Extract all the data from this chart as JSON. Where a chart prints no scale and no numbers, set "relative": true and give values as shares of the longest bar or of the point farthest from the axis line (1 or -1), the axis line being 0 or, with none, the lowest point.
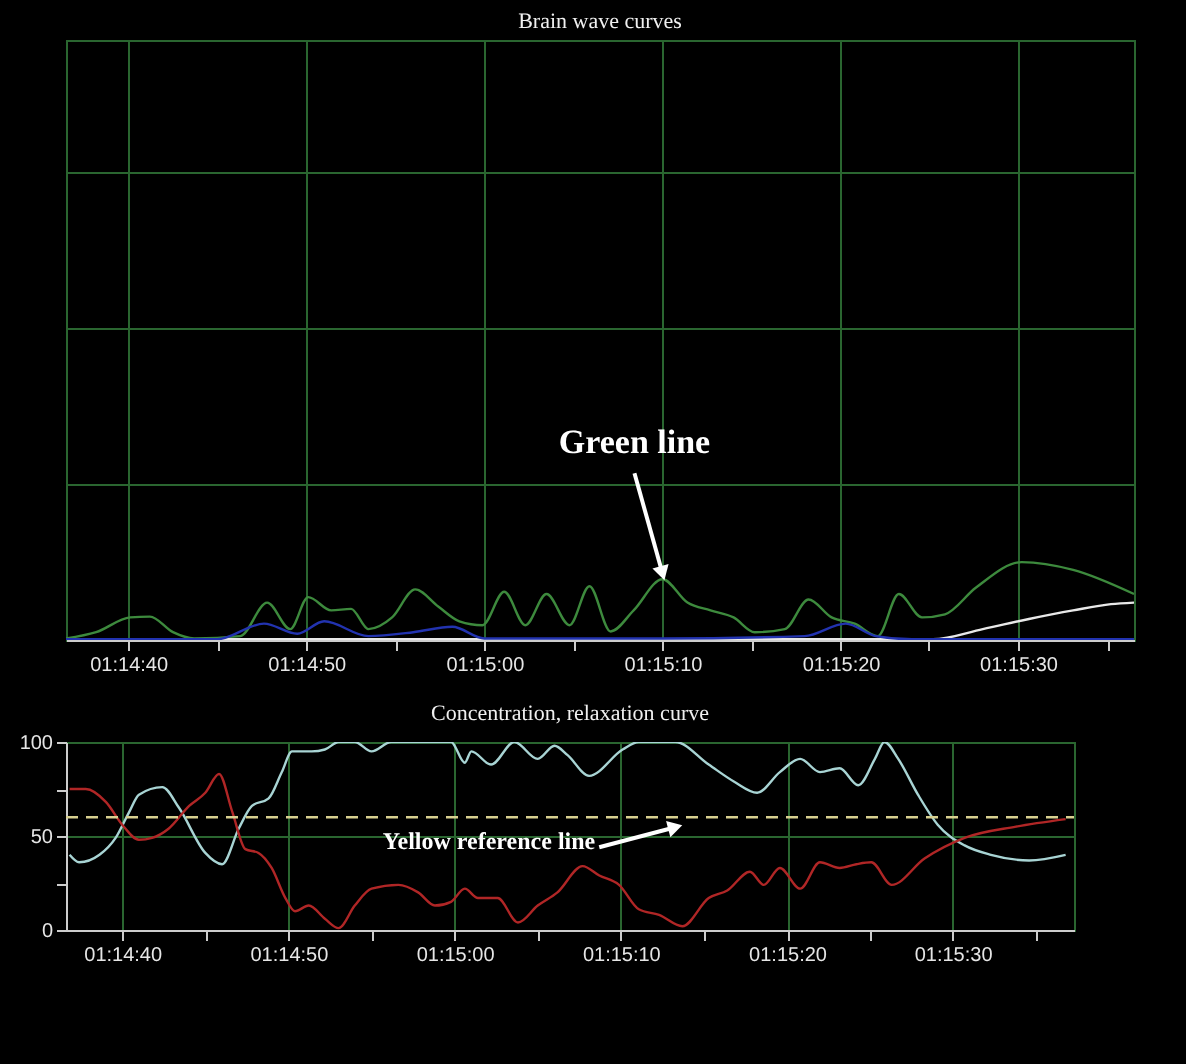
{
  "chart_data": [
    {
      "type": "line",
      "title": "Brain wave curves",
      "relative": true,
      "grid": true,
      "tick_labels": "x",
      "marker": "none",
      "line_style": "solid",
      "xlim": [
        1.24347,
        1.26014
      ],
      "xticks": [
        {
          "value": 1.24444,
          "label": "01:14:40"
        },
        {
          "value": 1.24583,
          "label": null
        },
        {
          "value": 1.24722,
          "label": "01:14:50"
        },
        {
          "value": 1.24861,
          "label": null
        },
        {
          "value": 1.25,
          "label": "01:15:00"
        },
        {
          "value": 1.25139,
          "label": null
        },
        {
          "value": 1.25278,
          "label": "01:15:10"
        },
        {
          "value": 1.25417,
          "label": null
        },
        {
          "value": 1.25556,
          "label": "01:15:20"
        },
        {
          "value": 1.25694,
          "label": null
        },
        {
          "value": 1.25833,
          "label": "01:15:30"
        },
        {
          "value": 1.25972,
          "label": null
        }
      ],
      "series": [
        {
          "color": "#3d8a3d",
          "x": [
            1.24347,
            1.24394,
            1.24447,
            1.24478,
            1.24514,
            1.24547,
            1.24619,
            1.24661,
            1.24697,
            1.24725,
            1.24761,
            1.24792,
            1.24819,
            1.24856,
            1.24892,
            1.24928,
            1.24961,
            1.24997,
            1.25031,
            1.25064,
            1.25097,
            1.25133,
            1.25164,
            1.25197,
            1.25233,
            1.25278,
            1.25317,
            1.25353,
            1.25389,
            1.25422,
            1.25469,
            1.25506,
            1.25542,
            1.25578,
            1.25614,
            1.25647,
            1.25683,
            1.25719,
            1.25767,
            1.25839,
            1.25919,
            1.26014
          ],
          "values": [
            0.02,
            0.1,
            0.29,
            0.3,
            0.1,
            0.02,
            0.05,
            0.48,
            0.14,
            0.55,
            0.38,
            0.4,
            0.14,
            0.29,
            0.65,
            0.43,
            0.24,
            0.19,
            0.62,
            0.19,
            0.59,
            0.19,
            0.69,
            0.11,
            0.38,
            0.78,
            0.48,
            0.38,
            0.29,
            0.1,
            0.14,
            0.52,
            0.29,
            0.21,
            0.05,
            0.59,
            0.29,
            0.33,
            0.67,
            1,
            0.9,
            0.59
          ]
        },
        {
          "color": "#e8e8e8",
          "x": [
            1.24347,
            1.257,
            1.25778,
            1.2585,
            1.25919,
            1.25978,
            1.26014
          ],
          "values": [
            0.01,
            0.01,
            0.14,
            0.27,
            0.38,
            0.46,
            0.48
          ]
        },
        {
          "color": "#2233b0",
          "x": [
            1.24347,
            1.24583,
            1.24656,
            1.24708,
            1.2475,
            1.24819,
            1.24889,
            1.2495,
            1.25,
            1.25278,
            1.255,
            1.25564,
            1.25611,
            1.25667,
            1.26014
          ],
          "values": [
            0.01,
            0.01,
            0.21,
            0.08,
            0.24,
            0.05,
            0.1,
            0.17,
            0.02,
            0.02,
            0.05,
            0.21,
            0.05,
            0.01,
            0.01
          ]
        }
      ],
      "annotations": [
        {
          "text": "Green line",
          "x": 1.25278,
          "y": 0.78
        }
      ]
    },
    {
      "type": "line",
      "title": "Concentration, relaxation curve",
      "grid": true,
      "marker": "none",
      "line_style": "solid",
      "xlim": [
        1.2435,
        1.26036
      ],
      "xticks": [
        {
          "value": 1.24444,
          "label": "01:14:40"
        },
        {
          "value": 1.24583,
          "label": null
        },
        {
          "value": 1.24722,
          "label": "01:14:50"
        },
        {
          "value": 1.24861,
          "label": null
        },
        {
          "value": 1.25,
          "label": "01:15:00"
        },
        {
          "value": 1.25139,
          "label": null
        },
        {
          "value": 1.25278,
          "label": "01:15:10"
        },
        {
          "value": 1.25417,
          "label": null
        },
        {
          "value": 1.25556,
          "label": "01:15:20"
        },
        {
          "value": 1.25694,
          "label": null
        },
        {
          "value": 1.25833,
          "label": "01:15:30"
        },
        {
          "value": 1.25972,
          "label": null
        }
      ],
      "ylim": [
        0,
        100
      ],
      "yticks": [
        0,
        {
          "value": 25,
          "label": null
        },
        50,
        {
          "value": 75,
          "label": null
        },
        100
      ],
      "series": [
        {
          "color": "#a8d4d4",
          "x": [
            1.24356,
            1.24372,
            1.24406,
            1.24433,
            1.24456,
            1.24472,
            1.24511,
            1.24539,
            1.24583,
            1.24611,
            1.24639,
            1.24661,
            1.24689,
            1.24711,
            1.24728,
            1.24761,
            1.24783,
            1.24806,
            1.24833,
            1.24861,
            1.24894,
            1.24994,
            1.25017,
            1.25028,
            1.25061,
            1.251,
            1.25139,
            1.25167,
            1.25189,
            1.25225,
            1.25281,
            1.25308,
            1.25369,
            1.25425,
            1.25467,
            1.25506,
            1.25544,
            1.25578,
            1.25611,
            1.25644,
            1.25675,
            1.25703,
            1.25719,
            1.25742,
            1.25775,
            1.25808,
            1.25853,
            1.25897,
            1.25961,
            1.26022
          ],
          "values": [
            40,
            36,
            40,
            49,
            63,
            72,
            76,
            65,
            41,
            35,
            54,
            66,
            70,
            84,
            95,
            95,
            96,
            100,
            100,
            95,
            100,
            100,
            89,
            95,
            88,
            100,
            91,
            98,
            93,
            82,
            96,
            100,
            100,
            88,
            79,
            73,
            84,
            91,
            84,
            86,
            77,
            91,
            100,
            91,
            72,
            56,
            45,
            40,
            37,
            40
          ]
        },
        {
          "color": "#b02626",
          "x": [
            1.24356,
            1.24383,
            1.24417,
            1.24444,
            1.24472,
            1.24494,
            1.24522,
            1.24556,
            1.24583,
            1.24606,
            1.24628,
            1.2465,
            1.24672,
            1.24694,
            1.24717,
            1.24733,
            1.24756,
            1.24783,
            1.24806,
            1.24833,
            1.24861,
            1.24906,
            1.24939,
            1.24967,
            1.24994,
            1.25017,
            1.25039,
            1.25072,
            1.25106,
            1.25139,
            1.25172,
            1.25214,
            1.25242,
            1.25275,
            1.25308,
            1.25342,
            1.25381,
            1.25425,
            1.25456,
            1.25494,
            1.25517,
            1.25544,
            1.25578,
            1.25611,
            1.25644,
            1.25672,
            1.25697,
            1.25731,
            1.25786,
            1.25853,
            1.25939,
            1.26022
          ],
          "values": [
            75,
            75,
            68,
            56,
            48,
            49,
            54,
            66,
            73,
            83,
            63,
            43,
            41,
            33,
            17,
            10,
            13,
            6,
            1,
            13,
            22,
            24,
            20,
            13,
            15,
            22,
            17,
            17,
            4,
            13,
            20,
            34,
            29,
            24,
            11,
            8,
            2,
            17,
            21,
            31,
            24,
            33,
            22,
            36,
            33,
            35,
            36,
            24,
            38,
            49,
            55,
            59
          ]
        }
      ],
      "ref_lines": [
        {
          "axis": "y",
          "value": 60,
          "color": "#d8d090",
          "line_style": "dashed"
        }
      ],
      "annotations": [
        {
          "text": "Yellow reference line",
          "x": 1.25369,
          "y": 60
        }
      ]
    }
  ]
}
